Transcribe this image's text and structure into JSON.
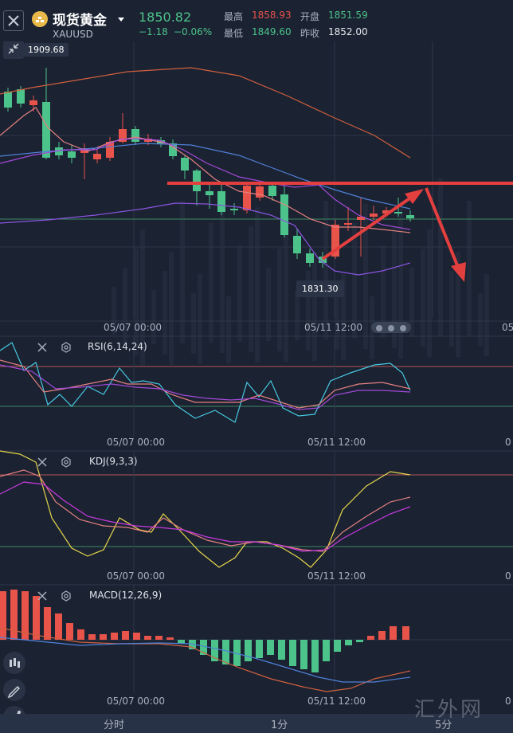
{
  "header": {
    "close_icon": "close-icon",
    "coin_icon": "gold-coin-icon",
    "title": "现货黄金",
    "dropdown_icon": "caret-down-icon",
    "symbol": "XAUUSD",
    "price": "1850.82",
    "change": "−1.18",
    "change_pct": "−0.06%",
    "high_label": "最高",
    "high": "1858.93",
    "open_label": "开盘",
    "open": "1851.59",
    "low_label": "最低",
    "low": "1849.60",
    "prev_close_label": "昨收",
    "prev_close": "1852.00",
    "up_color": "#e8534a",
    "down_color": "#4cc38a"
  },
  "main_chart": {
    "collapse_icon": "collapse-arrows-icon",
    "max_label": "1909.68",
    "min_label": "1831.30",
    "time_labels": [
      "05/07 00:00",
      "05/11 12:00",
      "05"
    ],
    "more_icon": "more-dots-icon"
  },
  "rsi": {
    "close_icon": "close-icon",
    "settings_icon": "settings-icon",
    "title": "RSI(6,14,24)",
    "time_labels": [
      "05/07 00:00",
      "05/11 12:00",
      "0"
    ]
  },
  "kdj": {
    "close_icon": "close-icon",
    "settings_icon": "settings-icon",
    "title": "KDJ(9,3,3)",
    "time_labels": [
      "05/07 00:00",
      "05/11 12:00",
      "0"
    ]
  },
  "macd": {
    "close_icon": "close-icon",
    "settings_icon": "settings-icon",
    "title": "MACD(12,26,9)",
    "time_labels": [
      "05/07 00:00",
      "05/11 12:00",
      "0"
    ]
  },
  "side_tools": [
    "candlestick-tool-icon",
    "pen-draw-icon",
    "line-draw-icon"
  ],
  "bottom_tabs": [
    "分时",
    "1分",
    "5分"
  ],
  "watermark": "汇外网"
}
